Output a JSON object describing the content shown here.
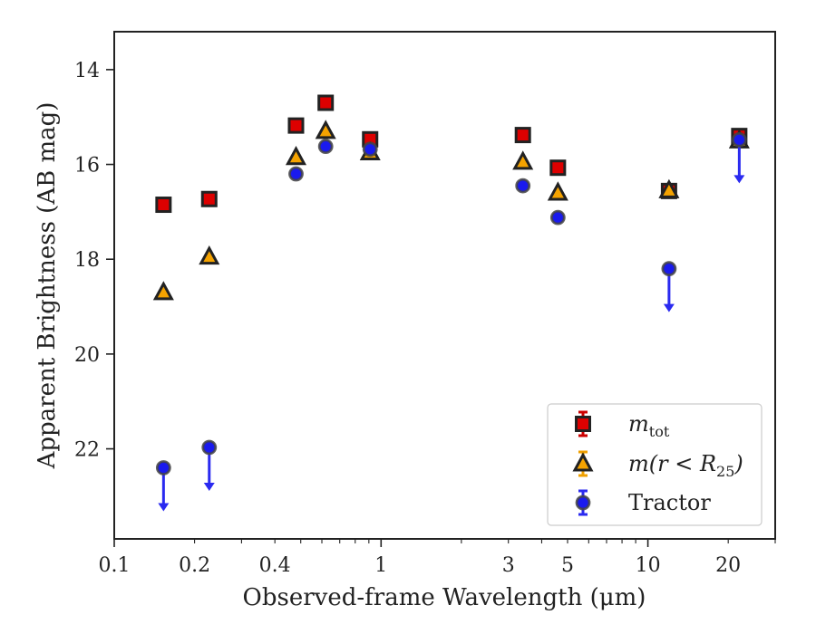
{
  "chart_data": {
    "type": "scatter",
    "xlabel": "Observed-frame Wavelength (μm)",
    "ylabel": "Apparent Brightness (AB mag)",
    "xscale": "log",
    "xlim": [
      0.1,
      30
    ],
    "ylim": [
      23.9,
      13.2
    ],
    "y_inverted": true,
    "x_ticks": [
      0.1,
      0.2,
      0.4,
      1,
      3,
      5,
      10,
      20
    ],
    "x_tick_labels": [
      "0.1",
      "0.2",
      "0.4",
      "1",
      "3",
      "5",
      "10",
      "20"
    ],
    "y_ticks": [
      14,
      16,
      18,
      20,
      22
    ],
    "y_tick_labels": [
      "14",
      "16",
      "18",
      "20",
      "22"
    ],
    "legend_position": "lower-right",
    "series": [
      {
        "name": "m_tot",
        "legend_main": "m",
        "legend_sub": "tot",
        "marker": "square",
        "fill": "#dd0000",
        "edge": "#222222",
        "errcolor": "#cc0000",
        "points": [
          {
            "x": 0.153,
            "y": 16.85
          },
          {
            "x": 0.227,
            "y": 16.73
          },
          {
            "x": 0.48,
            "y": 15.18
          },
          {
            "x": 0.62,
            "y": 14.7
          },
          {
            "x": 0.91,
            "y": 15.47
          },
          {
            "x": 3.4,
            "y": 15.38
          },
          {
            "x": 4.6,
            "y": 16.07
          },
          {
            "x": 12.0,
            "y": 16.56
          },
          {
            "x": 22.0,
            "y": 15.4
          }
        ]
      },
      {
        "name": "m(r < R25)",
        "legend_main": "m(r < R",
        "legend_sub": "25",
        "legend_tail": ")",
        "marker": "triangle",
        "fill": "#f5a300",
        "edge": "#222222",
        "errcolor": "#f0a000",
        "points": [
          {
            "x": 0.153,
            "y": 18.7
          },
          {
            "x": 0.227,
            "y": 17.95
          },
          {
            "x": 0.48,
            "y": 15.85
          },
          {
            "x": 0.62,
            "y": 15.3
          },
          {
            "x": 0.91,
            "y": 15.75
          },
          {
            "x": 3.4,
            "y": 15.95
          },
          {
            "x": 4.6,
            "y": 16.6
          },
          {
            "x": 12.0,
            "y": 16.55
          },
          {
            "x": 22.0,
            "y": 15.5
          }
        ]
      },
      {
        "name": "Tractor",
        "marker": "circle",
        "fill": "#1a1aee",
        "edge": "#444444",
        "errcolor": "#2a2af0",
        "points": [
          {
            "x": 0.153,
            "y": 22.4,
            "upper_limit": true
          },
          {
            "x": 0.227,
            "y": 21.97,
            "upper_limit": true
          },
          {
            "x": 0.48,
            "y": 16.2
          },
          {
            "x": 0.62,
            "y": 15.62
          },
          {
            "x": 0.91,
            "y": 15.68
          },
          {
            "x": 3.4,
            "y": 16.45
          },
          {
            "x": 4.6,
            "y": 17.12
          },
          {
            "x": 12.0,
            "y": 18.2,
            "upper_limit": true
          },
          {
            "x": 22.0,
            "y": 15.48,
            "upper_limit": true
          }
        ]
      }
    ]
  }
}
